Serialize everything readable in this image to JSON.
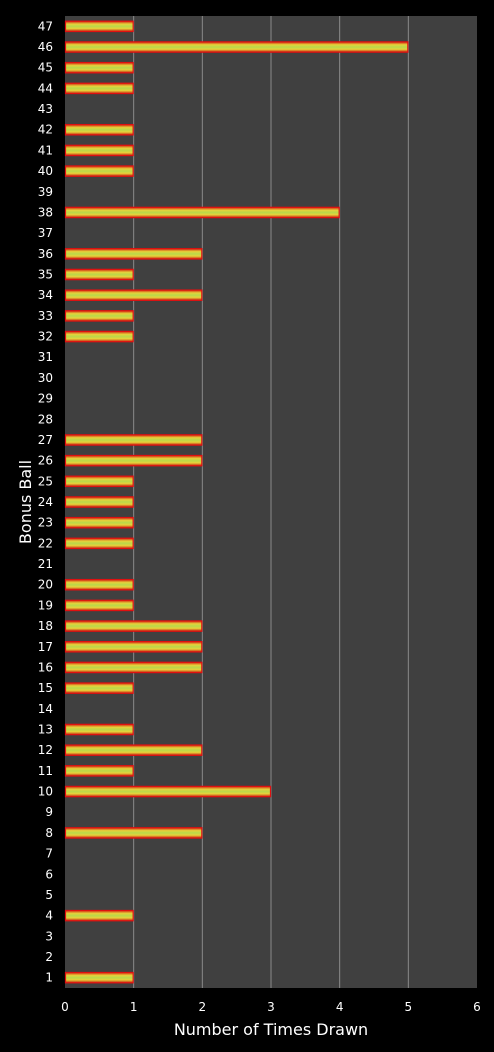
{
  "colors": {
    "page_background": "#000000",
    "plot_background": "#404040",
    "gridline": "#8a8a8a",
    "bar_fill": "#c8dc40",
    "bar_edge": "#e01010",
    "text": "#ffffff"
  },
  "chart_data": {
    "type": "bar",
    "orientation": "horizontal",
    "title": "",
    "xlabel": "Number of Times Drawn",
    "ylabel": "Bonus Ball",
    "xlim": [
      0,
      6
    ],
    "x_ticks": [
      "0",
      "1",
      "2",
      "3",
      "4",
      "5",
      "6"
    ],
    "grid": "vertical gridlines",
    "legend": "none",
    "categories": [
      "1",
      "2",
      "3",
      "4",
      "5",
      "6",
      "7",
      "8",
      "9",
      "10",
      "11",
      "12",
      "13",
      "14",
      "15",
      "16",
      "17",
      "18",
      "19",
      "20",
      "21",
      "22",
      "23",
      "24",
      "25",
      "26",
      "27",
      "28",
      "29",
      "30",
      "31",
      "32",
      "33",
      "34",
      "35",
      "36",
      "37",
      "38",
      "39",
      "40",
      "41",
      "42",
      "43",
      "44",
      "45",
      "46",
      "47"
    ],
    "values": [
      1,
      0,
      0,
      1,
      0,
      0,
      0,
      2,
      0,
      3,
      1,
      2,
      1,
      0,
      1,
      2,
      2,
      2,
      1,
      1,
      0,
      1,
      1,
      1,
      1,
      2,
      2,
      0,
      0,
      0,
      0,
      1,
      1,
      2,
      1,
      2,
      0,
      4,
      0,
      1,
      1,
      1,
      0,
      1,
      1,
      5,
      1
    ]
  }
}
